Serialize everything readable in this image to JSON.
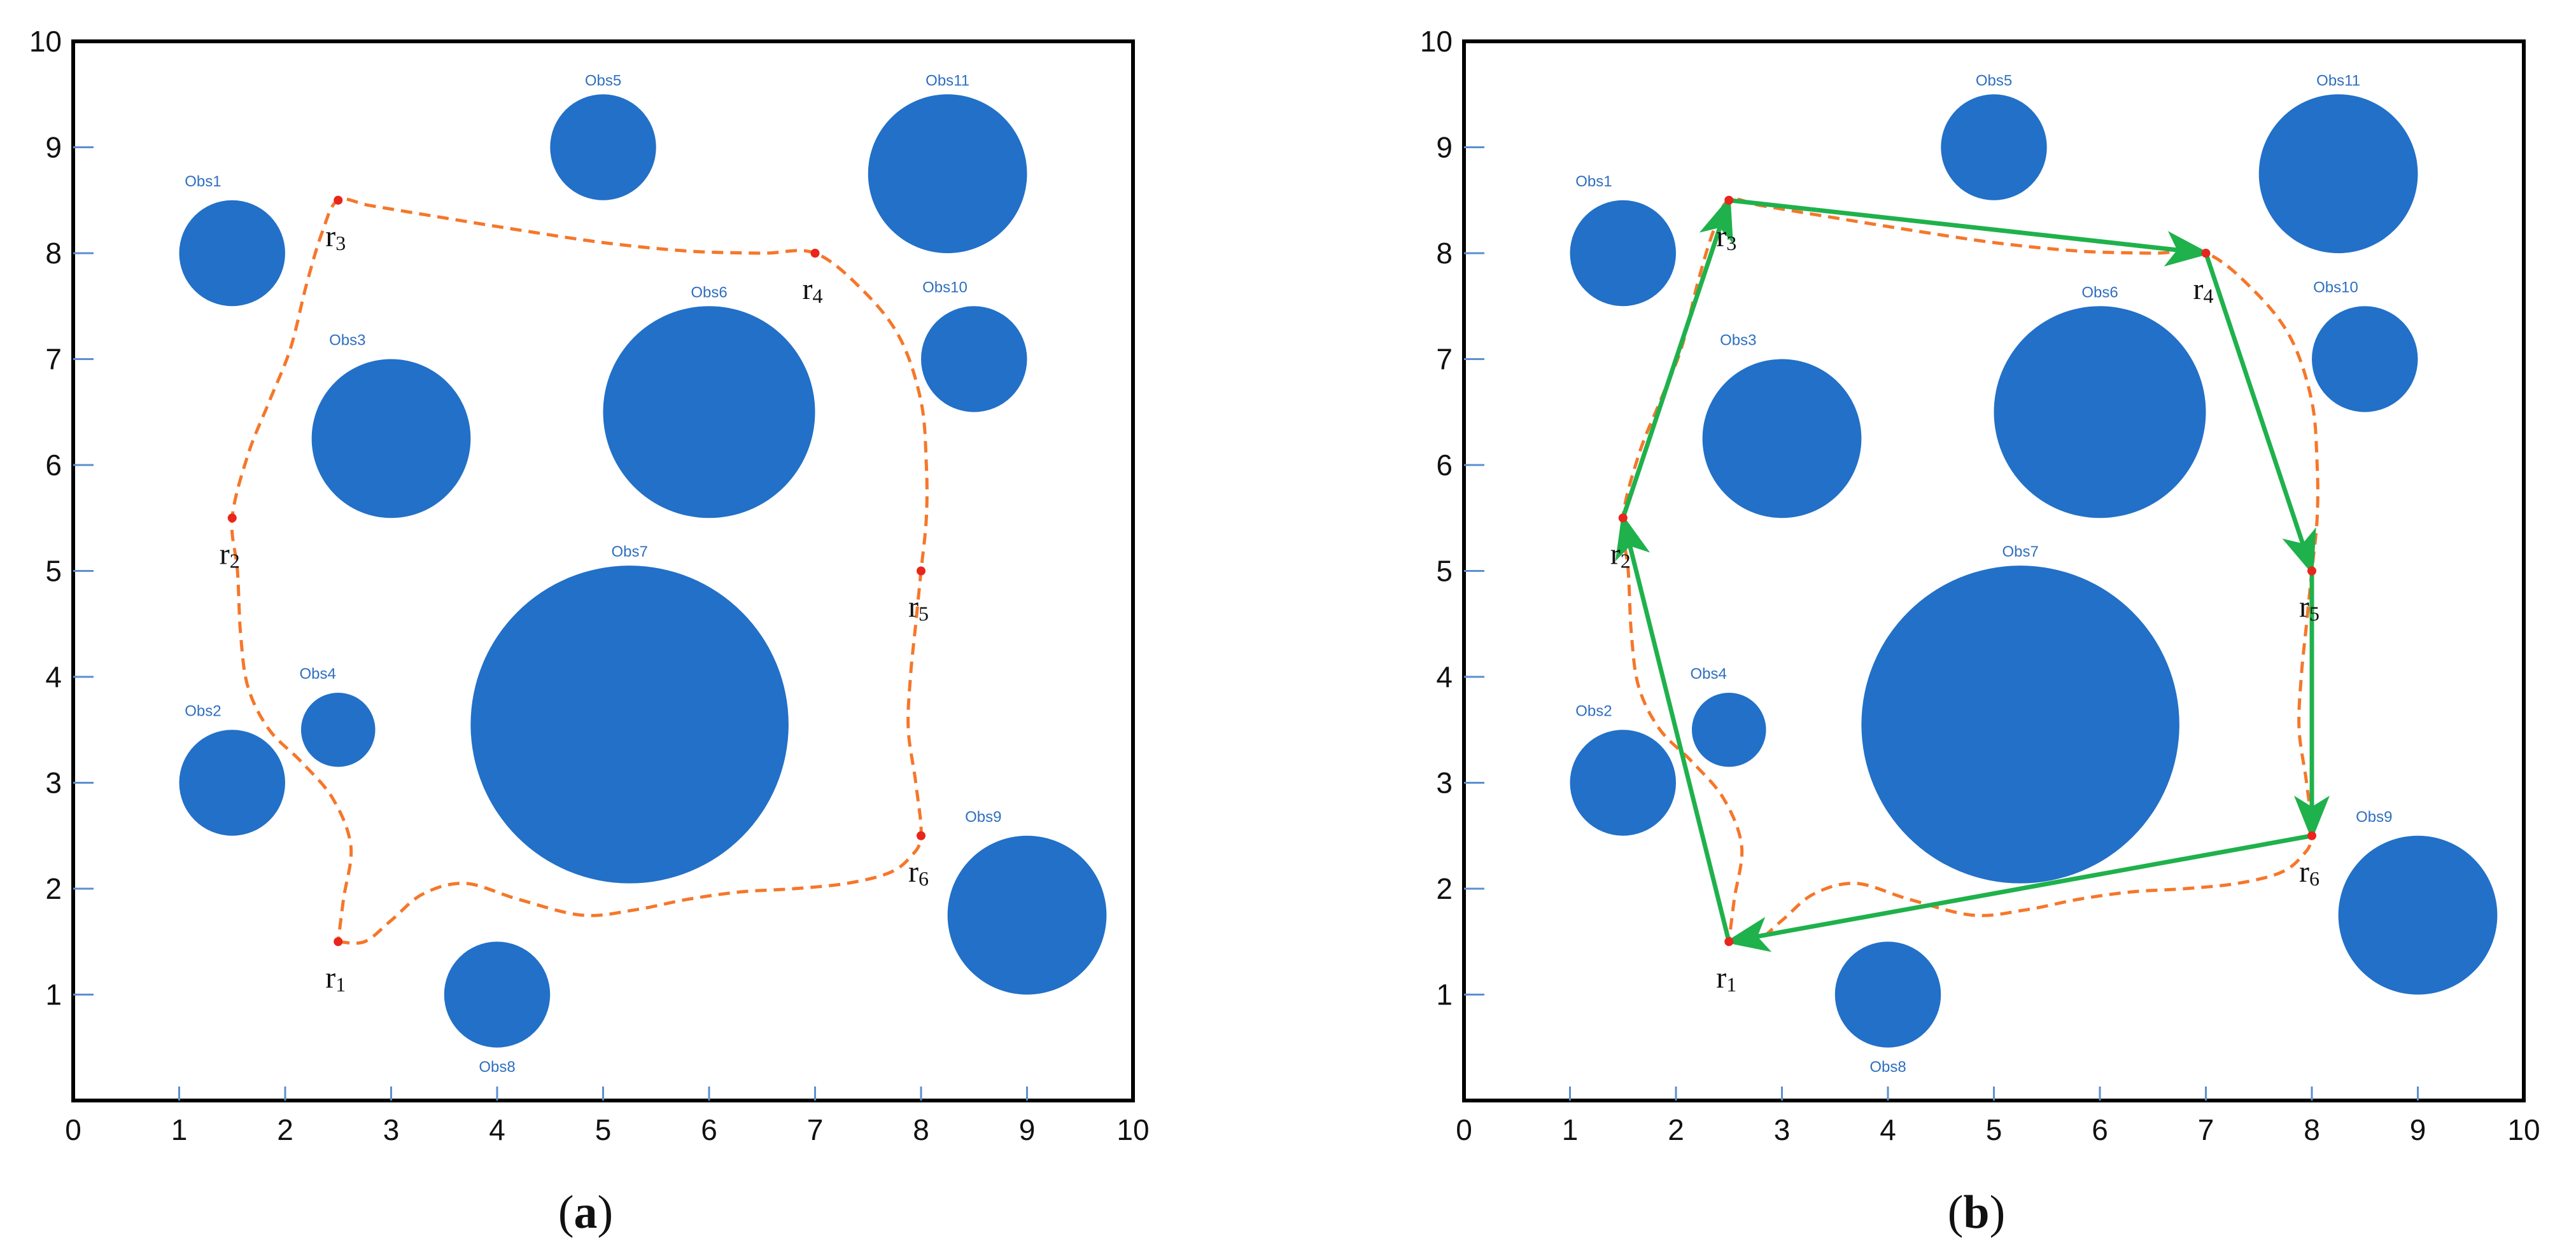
{
  "chart_data": [
    {
      "type": "scatter",
      "panel_label": "a",
      "xlim": [
        0,
        10
      ],
      "ylim": [
        0,
        10
      ],
      "x_ticks": [
        "0",
        "1",
        "2",
        "3",
        "4",
        "5",
        "6",
        "7",
        "8",
        "9",
        "10"
      ],
      "y_ticks": [
        "1",
        "2",
        "3",
        "4",
        "5",
        "6",
        "7",
        "8",
        "9",
        "10"
      ],
      "grid": false,
      "obstacles": [
        {
          "name": "Obs1",
          "x": 1.5,
          "y": 8.0,
          "r": 0.5,
          "label_pos": "top-left"
        },
        {
          "name": "Obs2",
          "x": 1.5,
          "y": 3.0,
          "r": 0.5,
          "label_pos": "top-left"
        },
        {
          "name": "Obs3",
          "x": 3.0,
          "y": 6.25,
          "r": 0.75,
          "label_pos": "top-left"
        },
        {
          "name": "Obs4",
          "x": 2.5,
          "y": 3.5,
          "r": 0.35,
          "label_pos": "top-left"
        },
        {
          "name": "Obs5",
          "x": 5.0,
          "y": 9.0,
          "r": 0.5,
          "label_pos": "top"
        },
        {
          "name": "Obs6",
          "x": 6.0,
          "y": 6.5,
          "r": 1.0,
          "label_pos": "top"
        },
        {
          "name": "Obs7",
          "x": 5.25,
          "y": 3.55,
          "r": 1.5,
          "label_pos": "top"
        },
        {
          "name": "Obs8",
          "x": 4.0,
          "y": 1.0,
          "r": 0.5,
          "label_pos": "bottom"
        },
        {
          "name": "Obs9",
          "x": 9.0,
          "y": 1.75,
          "r": 0.75,
          "label_pos": "top-left"
        },
        {
          "name": "Obs10",
          "x": 8.5,
          "y": 7.0,
          "r": 0.5,
          "label_pos": "top-left"
        },
        {
          "name": "Obs11",
          "x": 8.25,
          "y": 8.75,
          "r": 0.75,
          "label_pos": "top"
        }
      ],
      "waypoints": [
        {
          "name": "r1",
          "x": 2.5,
          "y": 1.5
        },
        {
          "name": "r2",
          "x": 1.5,
          "y": 5.5
        },
        {
          "name": "r3",
          "x": 2.5,
          "y": 8.5
        },
        {
          "name": "r4",
          "x": 7.0,
          "y": 8.0
        },
        {
          "name": "r5",
          "x": 8.0,
          "y": 5.0
        },
        {
          "name": "r6",
          "x": 8.0,
          "y": 2.5
        }
      ],
      "smooth_path": [
        [
          2.5,
          1.5
        ],
        [
          2.75,
          1.5
        ],
        [
          3.0,
          1.7
        ],
        [
          3.3,
          1.95
        ],
        [
          3.7,
          2.05
        ],
        [
          4.2,
          1.9
        ],
        [
          4.8,
          1.75
        ],
        [
          5.3,
          1.8
        ],
        [
          5.8,
          1.9
        ],
        [
          6.3,
          1.97
        ],
        [
          6.8,
          2.0
        ],
        [
          7.3,
          2.05
        ],
        [
          7.7,
          2.15
        ],
        [
          7.9,
          2.3
        ],
        [
          8.0,
          2.5
        ],
        [
          7.95,
          3.0
        ],
        [
          7.88,
          3.5
        ],
        [
          7.9,
          4.0
        ],
        [
          7.95,
          4.5
        ],
        [
          8.0,
          5.0
        ],
        [
          8.05,
          5.5
        ],
        [
          8.05,
          6.0
        ],
        [
          8.0,
          6.6
        ],
        [
          7.8,
          7.2
        ],
        [
          7.45,
          7.65
        ],
        [
          7.0,
          8.0
        ],
        [
          6.5,
          8.0
        ],
        [
          5.8,
          8.02
        ],
        [
          5.0,
          8.1
        ],
        [
          4.2,
          8.22
        ],
        [
          3.4,
          8.35
        ],
        [
          2.8,
          8.45
        ],
        [
          2.5,
          8.5
        ],
        [
          2.35,
          8.2
        ],
        [
          2.2,
          7.7
        ],
        [
          2.05,
          7.1
        ],
        [
          1.85,
          6.6
        ],
        [
          1.65,
          6.1
        ],
        [
          1.5,
          5.5
        ],
        [
          1.55,
          5.0
        ],
        [
          1.58,
          4.4
        ],
        [
          1.65,
          3.9
        ],
        [
          1.85,
          3.5
        ],
        [
          2.15,
          3.2
        ],
        [
          2.45,
          2.85
        ],
        [
          2.62,
          2.4
        ],
        [
          2.55,
          1.9
        ],
        [
          2.5,
          1.5
        ]
      ],
      "route": []
    },
    {
      "type": "scatter",
      "panel_label": "b",
      "xlim": [
        0,
        10
      ],
      "ylim": [
        0,
        10
      ],
      "x_ticks": [
        "0",
        "1",
        "2",
        "3",
        "4",
        "5",
        "6",
        "7",
        "8",
        "9",
        "10"
      ],
      "y_ticks": [
        "1",
        "2",
        "3",
        "4",
        "5",
        "6",
        "7",
        "8",
        "9",
        "10"
      ],
      "grid": false,
      "obstacles": [
        {
          "name": "Obs1",
          "x": 1.5,
          "y": 8.0,
          "r": 0.5,
          "label_pos": "top-left"
        },
        {
          "name": "Obs2",
          "x": 1.5,
          "y": 3.0,
          "r": 0.5,
          "label_pos": "top-left"
        },
        {
          "name": "Obs3",
          "x": 3.0,
          "y": 6.25,
          "r": 0.75,
          "label_pos": "top-left"
        },
        {
          "name": "Obs4",
          "x": 2.5,
          "y": 3.5,
          "r": 0.35,
          "label_pos": "top-left"
        },
        {
          "name": "Obs5",
          "x": 5.0,
          "y": 9.0,
          "r": 0.5,
          "label_pos": "top"
        },
        {
          "name": "Obs6",
          "x": 6.0,
          "y": 6.5,
          "r": 1.0,
          "label_pos": "top"
        },
        {
          "name": "Obs7",
          "x": 5.25,
          "y": 3.55,
          "r": 1.5,
          "label_pos": "top"
        },
        {
          "name": "Obs8",
          "x": 4.0,
          "y": 1.0,
          "r": 0.5,
          "label_pos": "bottom"
        },
        {
          "name": "Obs9",
          "x": 9.0,
          "y": 1.75,
          "r": 0.75,
          "label_pos": "top-left"
        },
        {
          "name": "Obs10",
          "x": 8.5,
          "y": 7.0,
          "r": 0.5,
          "label_pos": "top-left"
        },
        {
          "name": "Obs11",
          "x": 8.25,
          "y": 8.75,
          "r": 0.75,
          "label_pos": "top"
        }
      ],
      "waypoints": [
        {
          "name": "r1",
          "x": 2.5,
          "y": 1.5
        },
        {
          "name": "r2",
          "x": 1.5,
          "y": 5.5
        },
        {
          "name": "r3",
          "x": 2.5,
          "y": 8.5
        },
        {
          "name": "r4",
          "x": 7.0,
          "y": 8.0
        },
        {
          "name": "r5",
          "x": 8.0,
          "y": 5.0
        },
        {
          "name": "r6",
          "x": 8.0,
          "y": 2.5
        }
      ],
      "smooth_path": [
        [
          2.5,
          1.5
        ],
        [
          2.75,
          1.5
        ],
        [
          3.0,
          1.7
        ],
        [
          3.3,
          1.95
        ],
        [
          3.7,
          2.05
        ],
        [
          4.2,
          1.9
        ],
        [
          4.8,
          1.75
        ],
        [
          5.3,
          1.8
        ],
        [
          5.8,
          1.9
        ],
        [
          6.3,
          1.97
        ],
        [
          6.8,
          2.0
        ],
        [
          7.3,
          2.05
        ],
        [
          7.7,
          2.15
        ],
        [
          7.9,
          2.3
        ],
        [
          8.0,
          2.5
        ],
        [
          7.95,
          3.0
        ],
        [
          7.88,
          3.5
        ],
        [
          7.9,
          4.0
        ],
        [
          7.95,
          4.5
        ],
        [
          8.0,
          5.0
        ],
        [
          8.05,
          5.5
        ],
        [
          8.05,
          6.0
        ],
        [
          8.0,
          6.6
        ],
        [
          7.8,
          7.2
        ],
        [
          7.45,
          7.65
        ],
        [
          7.0,
          8.0
        ],
        [
          6.5,
          8.0
        ],
        [
          5.8,
          8.02
        ],
        [
          5.0,
          8.1
        ],
        [
          4.2,
          8.22
        ],
        [
          3.4,
          8.35
        ],
        [
          2.8,
          8.45
        ],
        [
          2.5,
          8.5
        ],
        [
          2.35,
          8.2
        ],
        [
          2.2,
          7.7
        ],
        [
          2.05,
          7.1
        ],
        [
          1.85,
          6.6
        ],
        [
          1.65,
          6.1
        ],
        [
          1.5,
          5.5
        ],
        [
          1.55,
          5.0
        ],
        [
          1.58,
          4.4
        ],
        [
          1.65,
          3.9
        ],
        [
          1.85,
          3.5
        ],
        [
          2.15,
          3.2
        ],
        [
          2.45,
          2.85
        ],
        [
          2.62,
          2.4
        ],
        [
          2.55,
          1.9
        ],
        [
          2.5,
          1.5
        ]
      ],
      "route": [
        {
          "from": "r1",
          "to": "r2"
        },
        {
          "from": "r2",
          "to": "r3"
        },
        {
          "from": "r3",
          "to": "r4"
        },
        {
          "from": "r4",
          "to": "r5"
        },
        {
          "from": "r5",
          "to": "r6"
        },
        {
          "from": "r6",
          "to": "r1"
        }
      ]
    }
  ],
  "colors": {
    "obstacle": "#2270c8",
    "obstacle_label": "#2e6fc0",
    "smooth_path": "#f5772a",
    "route": "#1fb14b",
    "waypoint": "#e8261c",
    "tick_marks": "#5b8fd0",
    "frame": "#000000"
  }
}
